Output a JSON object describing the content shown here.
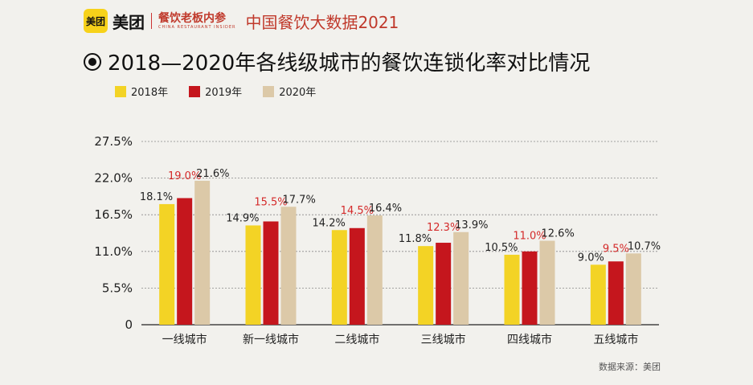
{
  "header": {
    "logo_text": "美团",
    "brand": "美团",
    "column_name": "餐饮老板内参",
    "column_name_en": "CHINA RESTAURANT INSIDER",
    "report_title": "中国餐饮大数据2021"
  },
  "source_note": "数据来源：美团",
  "colors": {
    "2018": "#f3d325",
    "2019": "#c5161d",
    "2020": "#dcc9a8",
    "highlight_label": "#d42a2a"
  },
  "chart_data": {
    "type": "bar",
    "title": "2018—2020年各线级城市的餐饮连锁化率对比情况",
    "categories": [
      "一线城市",
      "新一线城市",
      "二线城市",
      "三线城市",
      "四线城市",
      "五线城市"
    ],
    "series": [
      {
        "name": "2018年",
        "values": [
          18.1,
          14.9,
          14.2,
          11.8,
          10.5,
          9.0
        ],
        "labels": [
          "18.1%",
          "14.9%",
          "14.2%",
          "11.8%",
          "10.5%",
          "9.0%"
        ]
      },
      {
        "name": "2019年",
        "values": [
          19.0,
          15.5,
          14.5,
          12.3,
          11.0,
          9.5
        ],
        "labels": [
          "19.0%",
          "15.5%",
          "14.5%",
          "12.3%",
          "11.0%",
          "9.5%"
        ]
      },
      {
        "name": "2020年",
        "values": [
          21.6,
          17.7,
          16.4,
          13.9,
          12.6,
          10.7
        ],
        "labels": [
          "21.6%",
          "17.7%",
          "16.4%",
          "13.9%",
          "12.6%",
          "10.7%"
        ]
      }
    ],
    "yticks": [
      "0",
      "5.5%",
      "11.0%",
      "16.5%",
      "22.0%",
      "27.5%"
    ],
    "ytick_values": [
      0,
      5.5,
      11.0,
      16.5,
      22.0,
      27.5
    ],
    "ylim": [
      0,
      27.5
    ],
    "grid": true,
    "legend_position": "top-left",
    "xlabel": "",
    "ylabel": ""
  }
}
